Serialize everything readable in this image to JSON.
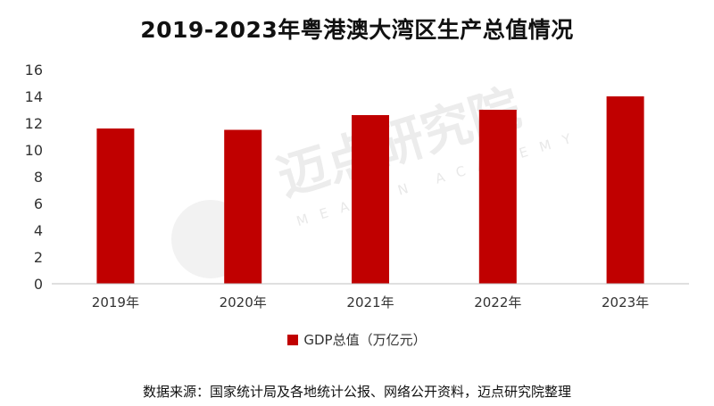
{
  "chart_data": {
    "type": "bar",
    "title": "2019-2023年粤港澳大湾区生产总值情况",
    "categories": [
      "2019年",
      "2020年",
      "2021年",
      "2022年",
      "2023年"
    ],
    "series": [
      {
        "name": "GDP总值（万亿元）",
        "values": [
          11.6,
          11.5,
          12.6,
          13.0,
          14.0
        ],
        "color": "#c00000"
      }
    ],
    "ylim": [
      0,
      16
    ],
    "yticks": [
      0,
      2,
      4,
      6,
      8,
      10,
      12,
      14,
      16
    ],
    "grid": false,
    "legend_position": "bottom"
  },
  "watermark": {
    "text": "迈点研究院",
    "subtext": "MEADIN ACADEMY"
  },
  "source": "数据来源：国家统计局及各地统计公报、网络公开资料，迈点研究院整理"
}
